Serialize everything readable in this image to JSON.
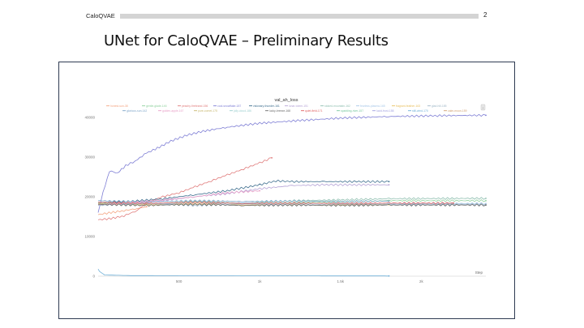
{
  "header": {
    "app_name": "CaloQVAE",
    "page_number": "2"
  },
  "slide": {
    "title": "UNet for CaloQVAE – Preliminary Results"
  },
  "chart_data": {
    "type": "line",
    "title": "val_ah_loss",
    "xlabel": "Step",
    "ylabel": "",
    "xlim": [
      0,
      2400
    ],
    "ylim": [
      0,
      42000
    ],
    "x_ticks": [
      {
        "v": 500,
        "label": "500"
      },
      {
        "v": 1000,
        "label": "1k"
      },
      {
        "v": 1500,
        "label": "1.5k"
      },
      {
        "v": 2000,
        "label": "2k"
      }
    ],
    "y_ticks": [
      {
        "v": 0,
        "label": "0"
      },
      {
        "v": 10000,
        "label": "10000"
      },
      {
        "v": 20000,
        "label": "20000"
      },
      {
        "v": 30000,
        "label": "30000"
      },
      {
        "v": 40000,
        "label": "40000"
      }
    ],
    "grid": false,
    "legend_position": "top",
    "series": [
      {
        "name": "honest-sun-38",
        "color": "#f4a582",
        "points": [
          [
            0,
            15500
          ],
          [
            80,
            16000
          ],
          [
            160,
            16500
          ],
          [
            240,
            17000
          ],
          [
            300,
            17500
          ]
        ]
      },
      {
        "name": "gentle-glade-146",
        "color": "#8fd19e",
        "points": [
          [
            0,
            18400
          ],
          [
            300,
            18200
          ],
          [
            600,
            18600
          ],
          [
            900,
            18300
          ],
          [
            1200,
            18500
          ],
          [
            1500,
            18700
          ],
          [
            1800,
            19000
          ],
          [
            2400,
            19000
          ]
        ]
      },
      {
        "name": "peachy-firebrand-156",
        "color": "#e07b7b",
        "points": [
          [
            0,
            14200
          ],
          [
            80,
            14500
          ],
          [
            160,
            15200
          ],
          [
            240,
            16500
          ],
          [
            300,
            18500
          ],
          [
            400,
            20000
          ],
          [
            500,
            21000
          ],
          [
            600,
            22500
          ],
          [
            700,
            24000
          ],
          [
            800,
            25500
          ],
          [
            900,
            27000
          ],
          [
            1000,
            28500
          ],
          [
            1075,
            29800
          ]
        ]
      },
      {
        "name": "cool-snowflake-187",
        "color": "#7f7fd5",
        "points": [
          [
            0,
            16000
          ],
          [
            30,
            21000
          ],
          [
            70,
            26500
          ],
          [
            120,
            26000
          ],
          [
            170,
            27800
          ],
          [
            230,
            29000
          ],
          [
            300,
            31000
          ],
          [
            380,
            32500
          ],
          [
            450,
            34000
          ],
          [
            550,
            35500
          ],
          [
            650,
            36500
          ],
          [
            800,
            37500
          ],
          [
            1000,
            38500
          ],
          [
            1250,
            39200
          ],
          [
            1500,
            39800
          ],
          [
            1800,
            40200
          ],
          [
            2100,
            40400
          ],
          [
            2400,
            40500
          ]
        ]
      },
      {
        "name": "visionary-thunder-161",
        "color": "#3f6f8f",
        "points": [
          [
            0,
            18500
          ],
          [
            200,
            18800
          ],
          [
            400,
            19500
          ],
          [
            600,
            20500
          ],
          [
            800,
            21500
          ],
          [
            1000,
            23000
          ],
          [
            1100,
            24000
          ],
          [
            1200,
            23800
          ],
          [
            1400,
            23800
          ],
          [
            1600,
            23800
          ],
          [
            1800,
            23800
          ]
        ]
      },
      {
        "name": "lunar-totem-151",
        "color": "#b5a3d6",
        "points": [
          [
            0,
            18000
          ],
          [
            200,
            18200
          ],
          [
            400,
            19000
          ],
          [
            600,
            20000
          ],
          [
            800,
            20800
          ],
          [
            1000,
            22000
          ],
          [
            1200,
            22800
          ],
          [
            1400,
            23000
          ],
          [
            1600,
            23000
          ],
          [
            1800,
            23000
          ]
        ]
      },
      {
        "name": "stoked-mountain-162",
        "color": "#8fbfb0",
        "points": [
          [
            0,
            18500
          ],
          [
            300,
            18200
          ],
          [
            600,
            18800
          ],
          [
            900,
            18400
          ],
          [
            1200,
            19000
          ],
          [
            1500,
            19200
          ],
          [
            1800,
            19500
          ],
          [
            2400,
            19600
          ]
        ]
      },
      {
        "name": "fearless-plasma-165",
        "color": "#a8c8e8",
        "points": [
          [
            0,
            18000
          ],
          [
            300,
            18400
          ],
          [
            600,
            18100
          ],
          [
            900,
            18500
          ],
          [
            1200,
            18200
          ],
          [
            1500,
            18400
          ],
          [
            1800,
            18300
          ],
          [
            2400,
            18300
          ]
        ]
      },
      {
        "name": "fragrant-feather-163",
        "color": "#e8c060",
        "points": [
          [
            0,
            18200
          ],
          [
            300,
            17900
          ],
          [
            600,
            18200
          ],
          [
            900,
            17900
          ],
          [
            1200,
            18000
          ],
          [
            1500,
            17900
          ],
          [
            1800,
            18000
          ]
        ]
      },
      {
        "name": "glad-hill-185",
        "color": "#a0b8c8",
        "points": [
          [
            0,
            17800
          ],
          [
            300,
            18300
          ],
          [
            600,
            17800
          ],
          [
            900,
            18200
          ],
          [
            1200,
            17900
          ],
          [
            1500,
            18100
          ],
          [
            1800,
            18100
          ],
          [
            2400,
            18100
          ]
        ]
      },
      {
        "name": "glorious-sun-142",
        "color": "#7fa6c9",
        "points": [
          [
            0,
            19000
          ],
          [
            300,
            18700
          ],
          [
            600,
            19000
          ],
          [
            900,
            18800
          ],
          [
            1200,
            18900
          ],
          [
            1500,
            18800
          ],
          [
            1800,
            18900
          ]
        ]
      },
      {
        "name": "golden-apple-167",
        "color": "#e8a0c8",
        "points": [
          [
            0,
            18000
          ],
          [
            200,
            18500
          ],
          [
            400,
            19200
          ],
          [
            600,
            20000
          ],
          [
            800,
            21000
          ],
          [
            1000,
            21500
          ]
        ]
      },
      {
        "name": "lucky-breeze-168",
        "color": "#6a6a6a",
        "points": [
          [
            0,
            18100
          ],
          [
            300,
            17800
          ],
          [
            600,
            18100
          ],
          [
            900,
            17800
          ],
          [
            1200,
            17900
          ],
          [
            1500,
            17800
          ],
          [
            1800,
            17900
          ],
          [
            2400,
            17900
          ]
        ]
      },
      {
        "name": "quiet-field-171",
        "color": "#e06060",
        "points": [
          [
            0,
            18600
          ],
          [
            300,
            18300
          ],
          [
            600,
            18600
          ],
          [
            900,
            18300
          ],
          [
            1200,
            18400
          ],
          [
            1500,
            18300
          ],
          [
            1800,
            18400
          ],
          [
            2200,
            18400
          ]
        ]
      },
      {
        "name": "still-wind-170",
        "color": "#6fb0d8",
        "points": [
          [
            0,
            1800
          ],
          [
            8,
            1200
          ],
          [
            40,
            300
          ],
          [
            200,
            150
          ],
          [
            600,
            100
          ],
          [
            1200,
            80
          ],
          [
            1800,
            50
          ]
        ]
      }
    ],
    "legend_rows": [
      [
        "honest-sun-38",
        "gentle-glade-146",
        "peachy-firebrand-156",
        "cool-snowflake-187",
        "visionary-thunder-161",
        "lunar-totem-151",
        "stoked-mountain-162",
        "fearless-plasma-165",
        "fragrant-feather-163",
        "glad-hill-185"
      ],
      [
        "glorious-sun-142",
        "golden-apple-167",
        "pure-comet-175",
        "jolly-cloud-186",
        "lucky-breeze-168",
        "quiet-field-171",
        "sparkling-river-157",
        "lucid-frost-158",
        "still-wind-170",
        "calm-moon-159"
      ]
    ]
  }
}
